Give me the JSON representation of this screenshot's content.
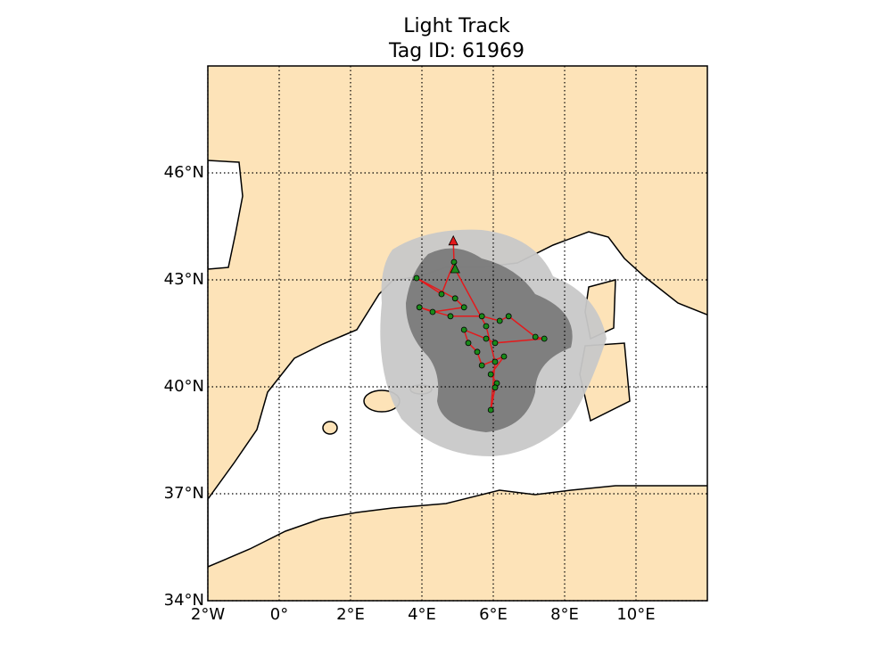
{
  "chart_data": {
    "type": "track",
    "title": "Light Track",
    "subtitle": "Tag ID: 61969",
    "xlim": [
      -2,
      12
    ],
    "ylim": [
      34,
      49
    ],
    "xticks": [
      {
        "value": -2,
        "label": "2°W"
      },
      {
        "value": 0,
        "label": "0°"
      },
      {
        "value": 2,
        "label": "2°E"
      },
      {
        "value": 4,
        "label": "4°E"
      },
      {
        "value": 6,
        "label": "6°E"
      },
      {
        "value": 8,
        "label": "8°E"
      },
      {
        "value": 10,
        "label": "10°E"
      }
    ],
    "yticks": [
      {
        "value": 34,
        "label": "34°N"
      },
      {
        "value": 37,
        "label": "37°N"
      },
      {
        "value": 40,
        "label": "40°N"
      },
      {
        "value": 43,
        "label": "43°N"
      },
      {
        "value": 46,
        "label": "46°N"
      }
    ],
    "grid": true,
    "line_color": "#e41a1c",
    "marker_color": "#1a8a1a",
    "x": [
      4.88,
      4.9,
      4.55,
      3.85,
      4.93,
      5.18,
      4.3,
      3.93,
      4.8,
      5.68,
      6.18,
      6.43,
      7.18,
      7.43,
      6.05,
      5.8,
      5.18,
      5.3,
      5.55,
      5.68,
      6.3,
      5.93,
      6.1,
      6.05,
      5.93,
      6.05,
      5.8,
      4.93
    ],
    "y": [
      44.08,
      43.5,
      42.6,
      43.05,
      42.48,
      42.23,
      42.1,
      42.23,
      41.98,
      41.98,
      41.85,
      41.98,
      41.4,
      41.35,
      41.23,
      41.35,
      41.6,
      41.23,
      40.98,
      40.6,
      40.85,
      40.35,
      40.1,
      39.98,
      39.35,
      40.7,
      41.7,
      43.3
    ]
  }
}
